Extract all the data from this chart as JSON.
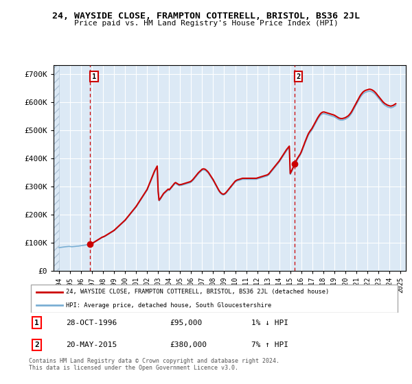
{
  "title1": "24, WAYSIDE CLOSE, FRAMPTON COTTERELL, BRISTOL, BS36 2JL",
  "title2": "Price paid vs. HM Land Registry's House Price Index (HPI)",
  "background_color": "#ffffff",
  "plot_bg_color": "#dce9f5",
  "grid_color": "#ffffff",
  "sale1": {
    "date_num": 1996.83,
    "price": 95000,
    "label": "1",
    "pct": "1%",
    "dir": "↓",
    "date_str": "28-OCT-1996"
  },
  "sale2": {
    "date_num": 2015.38,
    "price": 380000,
    "label": "2",
    "pct": "7%",
    "dir": "↑",
    "date_str": "20-MAY-2015"
  },
  "legend_line1": "24, WAYSIDE CLOSE, FRAMPTON COTTERELL, BRISTOL, BS36 2JL (detached house)",
  "legend_line2": "HPI: Average price, detached house, South Gloucestershire",
  "footer": "Contains HM Land Registry data © Crown copyright and database right 2024.\nThis data is licensed under the Open Government Licence v3.0.",
  "hpi_color": "#7aafd4",
  "price_color": "#cc0000",
  "ylim": [
    0,
    730000
  ],
  "xlim": [
    1993.5,
    2025.5
  ],
  "yticks": [
    0,
    100000,
    200000,
    300000,
    400000,
    500000,
    600000,
    700000
  ],
  "ytick_labels": [
    "£0",
    "£100K",
    "£200K",
    "£300K",
    "£400K",
    "£500K",
    "£600K",
    "£700K"
  ],
  "xticks": [
    1994,
    1995,
    1996,
    1997,
    1998,
    1999,
    2000,
    2001,
    2002,
    2003,
    2004,
    2005,
    2006,
    2007,
    2008,
    2009,
    2010,
    2011,
    2012,
    2013,
    2014,
    2015,
    2016,
    2017,
    2018,
    2019,
    2020,
    2021,
    2022,
    2023,
    2024,
    2025
  ],
  "hpi_data": [
    [
      1994.0,
      82000
    ],
    [
      1994.083,
      82500
    ],
    [
      1994.167,
      83000
    ],
    [
      1994.25,
      83500
    ],
    [
      1994.333,
      84000
    ],
    [
      1994.417,
      84500
    ],
    [
      1994.5,
      84800
    ],
    [
      1994.583,
      85200
    ],
    [
      1994.667,
      85500
    ],
    [
      1994.75,
      86000
    ],
    [
      1994.833,
      86200
    ],
    [
      1994.917,
      86500
    ],
    [
      1995.0,
      86000
    ],
    [
      1995.083,
      85500
    ],
    [
      1995.167,
      85200
    ],
    [
      1995.25,
      85500
    ],
    [
      1995.333,
      86000
    ],
    [
      1995.417,
      86300
    ],
    [
      1995.5,
      86500
    ],
    [
      1995.583,
      87000
    ],
    [
      1995.667,
      87200
    ],
    [
      1995.75,
      87500
    ],
    [
      1995.833,
      88000
    ],
    [
      1995.917,
      88500
    ],
    [
      1996.0,
      89000
    ],
    [
      1996.083,
      89500
    ],
    [
      1996.167,
      90000
    ],
    [
      1996.25,
      90500
    ],
    [
      1996.333,
      91000
    ],
    [
      1996.417,
      91500
    ],
    [
      1996.5,
      92000
    ],
    [
      1996.583,
      92500
    ],
    [
      1996.667,
      93000
    ],
    [
      1996.75,
      93500
    ],
    [
      1996.833,
      94000
    ],
    [
      1996.917,
      95000
    ],
    [
      1997.0,
      96500
    ],
    [
      1997.083,
      98000
    ],
    [
      1997.167,
      100000
    ],
    [
      1997.25,
      102000
    ],
    [
      1997.333,
      104000
    ],
    [
      1997.417,
      106000
    ],
    [
      1997.5,
      108000
    ],
    [
      1997.583,
      110000
    ],
    [
      1997.667,
      112000
    ],
    [
      1997.75,
      114000
    ],
    [
      1997.833,
      116000
    ],
    [
      1997.917,
      118000
    ],
    [
      1998.0,
      119000
    ],
    [
      1998.083,
      120500
    ],
    [
      1998.167,
      122000
    ],
    [
      1998.25,
      124000
    ],
    [
      1998.333,
      126000
    ],
    [
      1998.417,
      128000
    ],
    [
      1998.5,
      130000
    ],
    [
      1998.583,
      132000
    ],
    [
      1998.667,
      134000
    ],
    [
      1998.75,
      136000
    ],
    [
      1998.833,
      138000
    ],
    [
      1998.917,
      140000
    ],
    [
      1999.0,
      142000
    ],
    [
      1999.083,
      145000
    ],
    [
      1999.167,
      148000
    ],
    [
      1999.25,
      151000
    ],
    [
      1999.333,
      154000
    ],
    [
      1999.417,
      157000
    ],
    [
      1999.5,
      160000
    ],
    [
      1999.583,
      163000
    ],
    [
      1999.667,
      166000
    ],
    [
      1999.75,
      169000
    ],
    [
      1999.833,
      172000
    ],
    [
      1999.917,
      175000
    ],
    [
      2000.0,
      178000
    ],
    [
      2000.083,
      182000
    ],
    [
      2000.167,
      186000
    ],
    [
      2000.25,
      190000
    ],
    [
      2000.333,
      194000
    ],
    [
      2000.417,
      198000
    ],
    [
      2000.5,
      202000
    ],
    [
      2000.583,
      206000
    ],
    [
      2000.667,
      210000
    ],
    [
      2000.75,
      214000
    ],
    [
      2000.833,
      218000
    ],
    [
      2000.917,
      222000
    ],
    [
      2001.0,
      226000
    ],
    [
      2001.083,
      231000
    ],
    [
      2001.167,
      236000
    ],
    [
      2001.25,
      241000
    ],
    [
      2001.333,
      246000
    ],
    [
      2001.417,
      251000
    ],
    [
      2001.5,
      256000
    ],
    [
      2001.583,
      261000
    ],
    [
      2001.667,
      266000
    ],
    [
      2001.75,
      271000
    ],
    [
      2001.833,
      276000
    ],
    [
      2001.917,
      281000
    ],
    [
      2002.0,
      286000
    ],
    [
      2002.083,
      294000
    ],
    [
      2002.167,
      302000
    ],
    [
      2002.25,
      310000
    ],
    [
      2002.333,
      318000
    ],
    [
      2002.417,
      326000
    ],
    [
      2002.5,
      334000
    ],
    [
      2002.583,
      342000
    ],
    [
      2002.667,
      350000
    ],
    [
      2002.75,
      356000
    ],
    [
      2002.833,
      362000
    ],
    [
      2002.917,
      368000
    ],
    [
      2003.0,
      280000
    ],
    [
      2003.083,
      248000
    ],
    [
      2003.167,
      252000
    ],
    [
      2003.25,
      257000
    ],
    [
      2003.333,
      262000
    ],
    [
      2003.417,
      267000
    ],
    [
      2003.5,
      272000
    ],
    [
      2003.583,
      275000
    ],
    [
      2003.667,
      278000
    ],
    [
      2003.75,
      281000
    ],
    [
      2003.833,
      284000
    ],
    [
      2003.917,
      287000
    ],
    [
      2004.0,
      285000
    ],
    [
      2004.083,
      288000
    ],
    [
      2004.167,
      292000
    ],
    [
      2004.25,
      296000
    ],
    [
      2004.333,
      300000
    ],
    [
      2004.417,
      304000
    ],
    [
      2004.5,
      308000
    ],
    [
      2004.583,
      310000
    ],
    [
      2004.667,
      308000
    ],
    [
      2004.75,
      306000
    ],
    [
      2004.833,
      304000
    ],
    [
      2004.917,
      302000
    ],
    [
      2005.0,
      303000
    ],
    [
      2005.083,
      303000
    ],
    [
      2005.167,
      304000
    ],
    [
      2005.25,
      305000
    ],
    [
      2005.333,
      306000
    ],
    [
      2005.417,
      307000
    ],
    [
      2005.5,
      308000
    ],
    [
      2005.583,
      309000
    ],
    [
      2005.667,
      310000
    ],
    [
      2005.75,
      311000
    ],
    [
      2005.833,
      312000
    ],
    [
      2005.917,
      313000
    ],
    [
      2006.0,
      315000
    ],
    [
      2006.083,
      318000
    ],
    [
      2006.167,
      321000
    ],
    [
      2006.25,
      325000
    ],
    [
      2006.333,
      329000
    ],
    [
      2006.417,
      333000
    ],
    [
      2006.5,
      337000
    ],
    [
      2006.583,
      341000
    ],
    [
      2006.667,
      345000
    ],
    [
      2006.75,
      348000
    ],
    [
      2006.833,
      351000
    ],
    [
      2006.917,
      354000
    ],
    [
      2007.0,
      357000
    ],
    [
      2007.083,
      358000
    ],
    [
      2007.167,
      358000
    ],
    [
      2007.25,
      357000
    ],
    [
      2007.333,
      355000
    ],
    [
      2007.417,
      352000
    ],
    [
      2007.5,
      349000
    ],
    [
      2007.583,
      345000
    ],
    [
      2007.667,
      340000
    ],
    [
      2007.75,
      335000
    ],
    [
      2007.833,
      330000
    ],
    [
      2007.917,
      325000
    ],
    [
      2008.0,
      320000
    ],
    [
      2008.083,
      314000
    ],
    [
      2008.167,
      308000
    ],
    [
      2008.25,
      302000
    ],
    [
      2008.333,
      296000
    ],
    [
      2008.417,
      290000
    ],
    [
      2008.5,
      284000
    ],
    [
      2008.583,
      279000
    ],
    [
      2008.667,
      275000
    ],
    [
      2008.75,
      272000
    ],
    [
      2008.833,
      270000
    ],
    [
      2008.917,
      269000
    ],
    [
      2009.0,
      270000
    ],
    [
      2009.083,
      272000
    ],
    [
      2009.167,
      275000
    ],
    [
      2009.25,
      279000
    ],
    [
      2009.333,
      283000
    ],
    [
      2009.417,
      287000
    ],
    [
      2009.5,
      291000
    ],
    [
      2009.583,
      295000
    ],
    [
      2009.667,
      299000
    ],
    [
      2009.75,
      303000
    ],
    [
      2009.833,
      307000
    ],
    [
      2009.917,
      311000
    ],
    [
      2010.0,
      315000
    ],
    [
      2010.083,
      317000
    ],
    [
      2010.167,
      319000
    ],
    [
      2010.25,
      320000
    ],
    [
      2010.333,
      321000
    ],
    [
      2010.417,
      322000
    ],
    [
      2010.5,
      323000
    ],
    [
      2010.583,
      324000
    ],
    [
      2010.667,
      325000
    ],
    [
      2010.75,
      325000
    ],
    [
      2010.833,
      325000
    ],
    [
      2010.917,
      325000
    ],
    [
      2011.0,
      325000
    ],
    [
      2011.083,
      325000
    ],
    [
      2011.167,
      325000
    ],
    [
      2011.25,
      325000
    ],
    [
      2011.333,
      325000
    ],
    [
      2011.417,
      325000
    ],
    [
      2011.5,
      325000
    ],
    [
      2011.583,
      325000
    ],
    [
      2011.667,
      325000
    ],
    [
      2011.75,
      325000
    ],
    [
      2011.833,
      325000
    ],
    [
      2011.917,
      325000
    ],
    [
      2012.0,
      326000
    ],
    [
      2012.083,
      327000
    ],
    [
      2012.167,
      328000
    ],
    [
      2012.25,
      329000
    ],
    [
      2012.333,
      330000
    ],
    [
      2012.417,
      331000
    ],
    [
      2012.5,
      332000
    ],
    [
      2012.583,
      333000
    ],
    [
      2012.667,
      334000
    ],
    [
      2012.75,
      335000
    ],
    [
      2012.833,
      336000
    ],
    [
      2012.917,
      337000
    ],
    [
      2013.0,
      339000
    ],
    [
      2013.083,
      342000
    ],
    [
      2013.167,
      346000
    ],
    [
      2013.25,
      350000
    ],
    [
      2013.333,
      354000
    ],
    [
      2013.417,
      358000
    ],
    [
      2013.5,
      362000
    ],
    [
      2013.583,
      366000
    ],
    [
      2013.667,
      370000
    ],
    [
      2013.75,
      374000
    ],
    [
      2013.833,
      378000
    ],
    [
      2013.917,
      382000
    ],
    [
      2014.0,
      386000
    ],
    [
      2014.083,
      391000
    ],
    [
      2014.167,
      396000
    ],
    [
      2014.25,
      401000
    ],
    [
      2014.333,
      406000
    ],
    [
      2014.417,
      411000
    ],
    [
      2014.5,
      416000
    ],
    [
      2014.583,
      421000
    ],
    [
      2014.667,
      426000
    ],
    [
      2014.75,
      430000
    ],
    [
      2014.833,
      434000
    ],
    [
      2014.917,
      438000
    ],
    [
      2015.0,
      342000
    ],
    [
      2015.083,
      348000
    ],
    [
      2015.167,
      355000
    ],
    [
      2015.25,
      362000
    ],
    [
      2015.333,
      369000
    ],
    [
      2015.417,
      376000
    ],
    [
      2015.5,
      383000
    ],
    [
      2015.583,
      390000
    ],
    [
      2015.667,
      396000
    ],
    [
      2015.75,
      401000
    ],
    [
      2015.833,
      406000
    ],
    [
      2015.917,
      411000
    ],
    [
      2016.0,
      418000
    ],
    [
      2016.083,
      426000
    ],
    [
      2016.167,
      435000
    ],
    [
      2016.25,
      443000
    ],
    [
      2016.333,
      452000
    ],
    [
      2016.417,
      460000
    ],
    [
      2016.5,
      468000
    ],
    [
      2016.583,
      476000
    ],
    [
      2016.667,
      483000
    ],
    [
      2016.75,
      488000
    ],
    [
      2016.833,
      493000
    ],
    [
      2016.917,
      497000
    ],
    [
      2017.0,
      502000
    ],
    [
      2017.083,
      508000
    ],
    [
      2017.167,
      514000
    ],
    [
      2017.25,
      520000
    ],
    [
      2017.333,
      526000
    ],
    [
      2017.417,
      532000
    ],
    [
      2017.5,
      538000
    ],
    [
      2017.583,
      543000
    ],
    [
      2017.667,
      548000
    ],
    [
      2017.75,
      552000
    ],
    [
      2017.833,
      555000
    ],
    [
      2017.917,
      557000
    ],
    [
      2018.0,
      558000
    ],
    [
      2018.083,
      558000
    ],
    [
      2018.167,
      557000
    ],
    [
      2018.25,
      556000
    ],
    [
      2018.333,
      555000
    ],
    [
      2018.417,
      554000
    ],
    [
      2018.5,
      553000
    ],
    [
      2018.583,
      552000
    ],
    [
      2018.667,
      551000
    ],
    [
      2018.75,
      550000
    ],
    [
      2018.833,
      549000
    ],
    [
      2018.917,
      548000
    ],
    [
      2019.0,
      547000
    ],
    [
      2019.083,
      545000
    ],
    [
      2019.167,
      543000
    ],
    [
      2019.25,
      541000
    ],
    [
      2019.333,
      539000
    ],
    [
      2019.417,
      537000
    ],
    [
      2019.5,
      536000
    ],
    [
      2019.583,
      535000
    ],
    [
      2019.667,
      535000
    ],
    [
      2019.75,
      535000
    ],
    [
      2019.833,
      536000
    ],
    [
      2019.917,
      537000
    ],
    [
      2020.0,
      538000
    ],
    [
      2020.083,
      540000
    ],
    [
      2020.167,
      542000
    ],
    [
      2020.25,
      544000
    ],
    [
      2020.333,
      547000
    ],
    [
      2020.417,
      551000
    ],
    [
      2020.5,
      555000
    ],
    [
      2020.583,
      560000
    ],
    [
      2020.667,
      566000
    ],
    [
      2020.75,
      572000
    ],
    [
      2020.833,
      578000
    ],
    [
      2020.917,
      584000
    ],
    [
      2021.0,
      590000
    ],
    [
      2021.083,
      596000
    ],
    [
      2021.167,
      602000
    ],
    [
      2021.25,
      608000
    ],
    [
      2021.333,
      614000
    ],
    [
      2021.417,
      619000
    ],
    [
      2021.5,
      623000
    ],
    [
      2021.583,
      627000
    ],
    [
      2021.667,
      630000
    ],
    [
      2021.75,
      632000
    ],
    [
      2021.833,
      634000
    ],
    [
      2021.917,
      635000
    ],
    [
      2022.0,
      636000
    ],
    [
      2022.083,
      637000
    ],
    [
      2022.167,
      638000
    ],
    [
      2022.25,
      638000
    ],
    [
      2022.333,
      637000
    ],
    [
      2022.417,
      636000
    ],
    [
      2022.5,
      634000
    ],
    [
      2022.583,
      632000
    ],
    [
      2022.667,
      629000
    ],
    [
      2022.75,
      626000
    ],
    [
      2022.833,
      622000
    ],
    [
      2022.917,
      618000
    ],
    [
      2023.0,
      614000
    ],
    [
      2023.083,
      610000
    ],
    [
      2023.167,
      606000
    ],
    [
      2023.25,
      602000
    ],
    [
      2023.333,
      598000
    ],
    [
      2023.417,
      594000
    ],
    [
      2023.5,
      591000
    ],
    [
      2023.583,
      588000
    ],
    [
      2023.667,
      586000
    ],
    [
      2023.75,
      584000
    ],
    [
      2023.833,
      582000
    ],
    [
      2023.917,
      581000
    ],
    [
      2024.0,
      580000
    ],
    [
      2024.083,
      579000
    ],
    [
      2024.167,
      579000
    ],
    [
      2024.25,
      580000
    ],
    [
      2024.333,
      581000
    ],
    [
      2024.417,
      583000
    ],
    [
      2024.5,
      585000
    ],
    [
      2024.583,
      587000
    ]
  ]
}
